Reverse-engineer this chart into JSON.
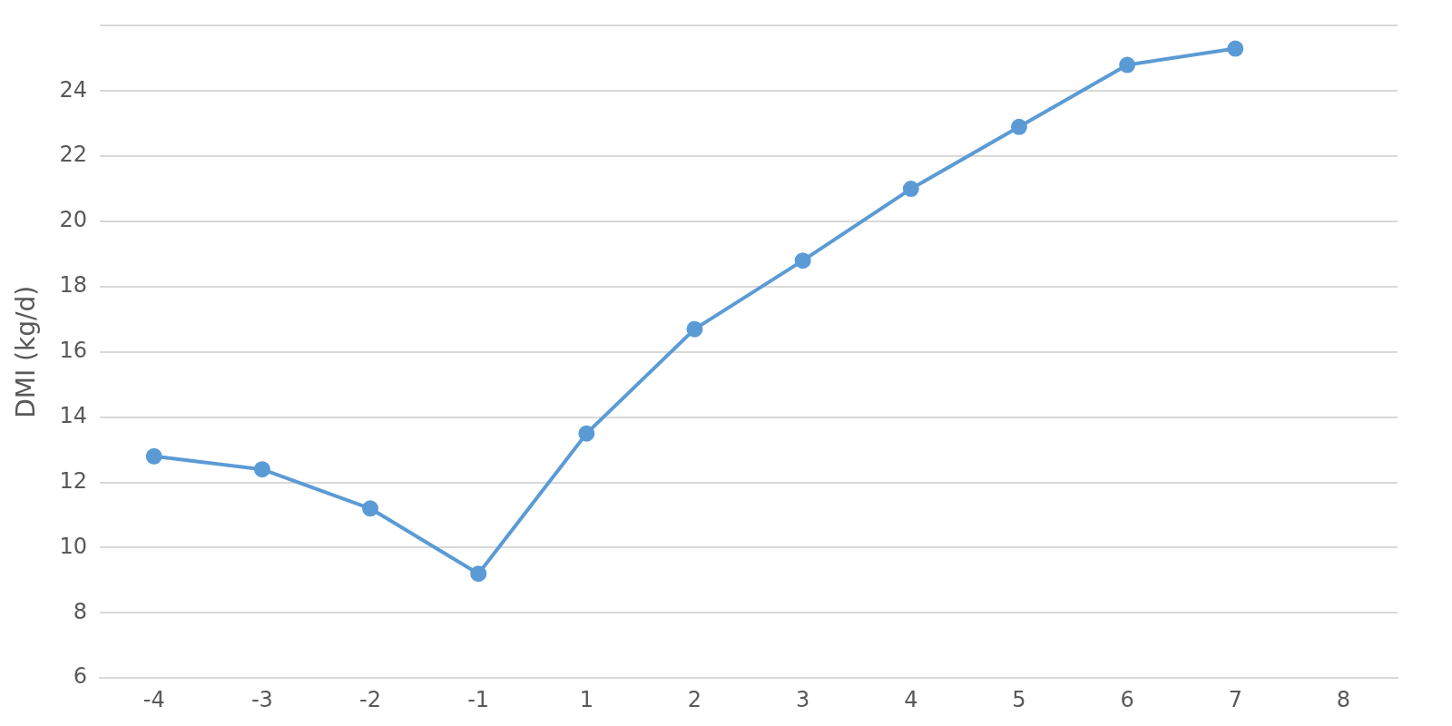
{
  "chart_data": {
    "type": "line",
    "ylabel": "DMI (kg/d)",
    "categories": [
      "-4",
      "-3",
      "-2",
      "-1",
      "1",
      "2",
      "3",
      "4",
      "5",
      "6",
      "7",
      "8"
    ],
    "series": [
      {
        "color": "#5b9bd5",
        "values": [
          12.8,
          12.4,
          11.2,
          9.2,
          13.5,
          16.7,
          18.8,
          21.0,
          22.9,
          24.8,
          25.3,
          null
        ]
      }
    ],
    "ylim": [
      6,
      26
    ],
    "yticks": [
      6,
      8,
      10,
      12,
      14,
      16,
      18,
      20,
      22,
      24,
      {
        "value": 26,
        "label": null
      }
    ],
    "grid": "y",
    "legend": false,
    "marker": "circle",
    "line_style": "solid"
  }
}
